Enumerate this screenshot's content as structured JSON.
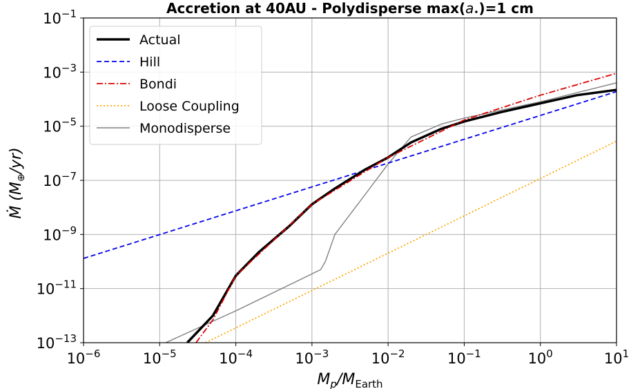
{
  "chart_data": {
    "type": "line",
    "title_prefix": "Accretion at 40AU - Polydisperse max(",
    "title_symbol": "a",
    "title_subscript": "•",
    "title_suffix": ")=1 cm",
    "xlabel_main": "M",
    "xlabel_sub": "p",
    "xlabel_sep": "/M",
    "xlabel_sub2": "Earth",
    "ylabel_main": "Ṁ (M",
    "ylabel_sub": "⊕",
    "ylabel_suffix": "/yr)",
    "x_scale": "log",
    "y_scale": "log",
    "xlim": [
      1e-06,
      10
    ],
    "ylim": [
      1e-13,
      0.1
    ],
    "x_ticks": [
      {
        "base": "10",
        "exp": "−6"
      },
      {
        "base": "10",
        "exp": "−5"
      },
      {
        "base": "10",
        "exp": "−4"
      },
      {
        "base": "10",
        "exp": "−3"
      },
      {
        "base": "10",
        "exp": "−2"
      },
      {
        "base": "10",
        "exp": "−1"
      },
      {
        "base": "10",
        "exp": "0"
      },
      {
        "base": "10",
        "exp": "1"
      }
    ],
    "y_ticks": [
      {
        "base": "10",
        "exp": "−13"
      },
      {
        "base": "10",
        "exp": "−11"
      },
      {
        "base": "10",
        "exp": "−9"
      },
      {
        "base": "10",
        "exp": "−7"
      },
      {
        "base": "10",
        "exp": "−5"
      },
      {
        "base": "10",
        "exp": "−3"
      },
      {
        "base": "10",
        "exp": "−1"
      }
    ],
    "grid": true,
    "legend_position": "top-left",
    "series": [
      {
        "name": "Actual",
        "color": "#000000",
        "style": "solid",
        "points": [
          [
            2.3e-05,
            1e-13
          ],
          [
            5e-05,
            1e-12
          ],
          [
            0.0001,
            3e-11
          ],
          [
            0.0002,
            2.2e-10
          ],
          [
            0.0005,
            2e-09
          ],
          [
            0.001,
            1.3e-08
          ],
          [
            0.002,
            5e-08
          ],
          [
            0.005,
            2.5e-07
          ],
          [
            0.01,
            7e-07
          ],
          [
            0.02,
            2.5e-06
          ],
          [
            0.05,
            8e-06
          ],
          [
            0.1,
            1.5e-05
          ],
          [
            0.3,
            3.3e-05
          ],
          [
            1,
            7e-05
          ],
          [
            3,
            0.00014
          ],
          [
            10,
            0.00022
          ]
        ]
      },
      {
        "name": "Hill",
        "color": "#0000ee",
        "style": "dashed",
        "points": [
          [
            1e-06,
            1.3e-10
          ],
          [
            10,
            0.00019
          ]
        ]
      },
      {
        "name": "Bondi",
        "color": "#dd0000",
        "style": "dashdot",
        "points": [
          [
            3e-05,
            1e-13
          ],
          [
            5e-05,
            7e-13
          ],
          [
            0.0001,
            3e-11
          ],
          [
            0.001,
            1.3e-08
          ],
          [
            0.01,
            7e-07
          ],
          [
            0.1,
            1.7e-05
          ],
          [
            1,
            0.00014
          ],
          [
            10,
            0.0009
          ]
        ]
      },
      {
        "name": "Loose Coupling",
        "color": "#ffa500",
        "style": "dotted",
        "points": [
          [
            4e-05,
            1e-13
          ],
          [
            10,
            2.8e-06
          ]
        ]
      },
      {
        "name": "Monodisperse",
        "color": "#808080",
        "style": "solid",
        "points": [
          [
            1.2e-05,
            1e-13
          ],
          [
            0.0001,
            1.5e-12
          ],
          [
            0.001,
            3.5e-11
          ],
          [
            0.0013,
            5e-11
          ],
          [
            0.0015,
            1e-10
          ],
          [
            0.002,
            1e-09
          ],
          [
            0.005,
            3e-08
          ],
          [
            0.01,
            4e-07
          ],
          [
            0.02,
            4e-06
          ],
          [
            0.05,
            1.2e-05
          ],
          [
            0.1,
            2e-05
          ],
          [
            1,
            8e-05
          ],
          [
            10,
            0.0004
          ]
        ]
      }
    ]
  }
}
